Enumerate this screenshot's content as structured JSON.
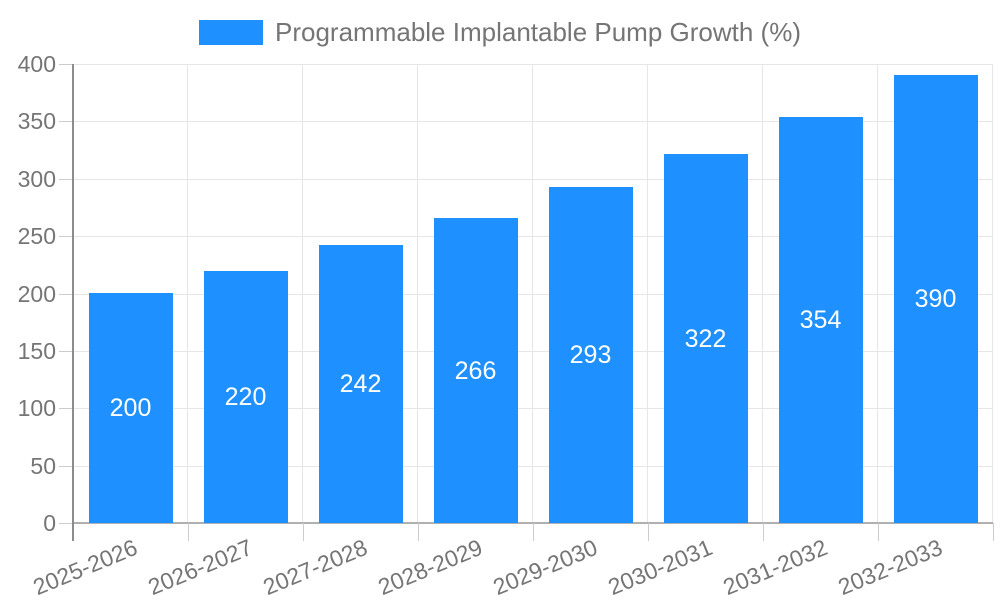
{
  "chart_data": {
    "type": "bar",
    "categories": [
      "2025-2026",
      "2026-2027",
      "2027-2028",
      "2028-2029",
      "2029-2030",
      "2030-2031",
      "2031-2032",
      "2032-2033"
    ],
    "series": [
      {
        "name": "Programmable Implantable Pump Growth (%)",
        "values": [
          200,
          220,
          242,
          266,
          293,
          322,
          354,
          390
        ]
      }
    ],
    "value_labels_shown": true,
    "xlabel": "",
    "ylabel": "",
    "ylim": [
      0,
      400
    ],
    "ytick_step": 50,
    "yticks": [
      0,
      50,
      100,
      150,
      200,
      250,
      300,
      350,
      400
    ],
    "grid": true,
    "legend_position": "top",
    "colors": {
      "bar": "#1e90ff",
      "value_label": "#ffffff",
      "axis_text": "#757575",
      "gridline": "#e6e6e6",
      "tick": "#cccccc",
      "axis_line": "#8c8c8c",
      "baseline": "#b0b0b0",
      "background": "#ffffff"
    }
  }
}
